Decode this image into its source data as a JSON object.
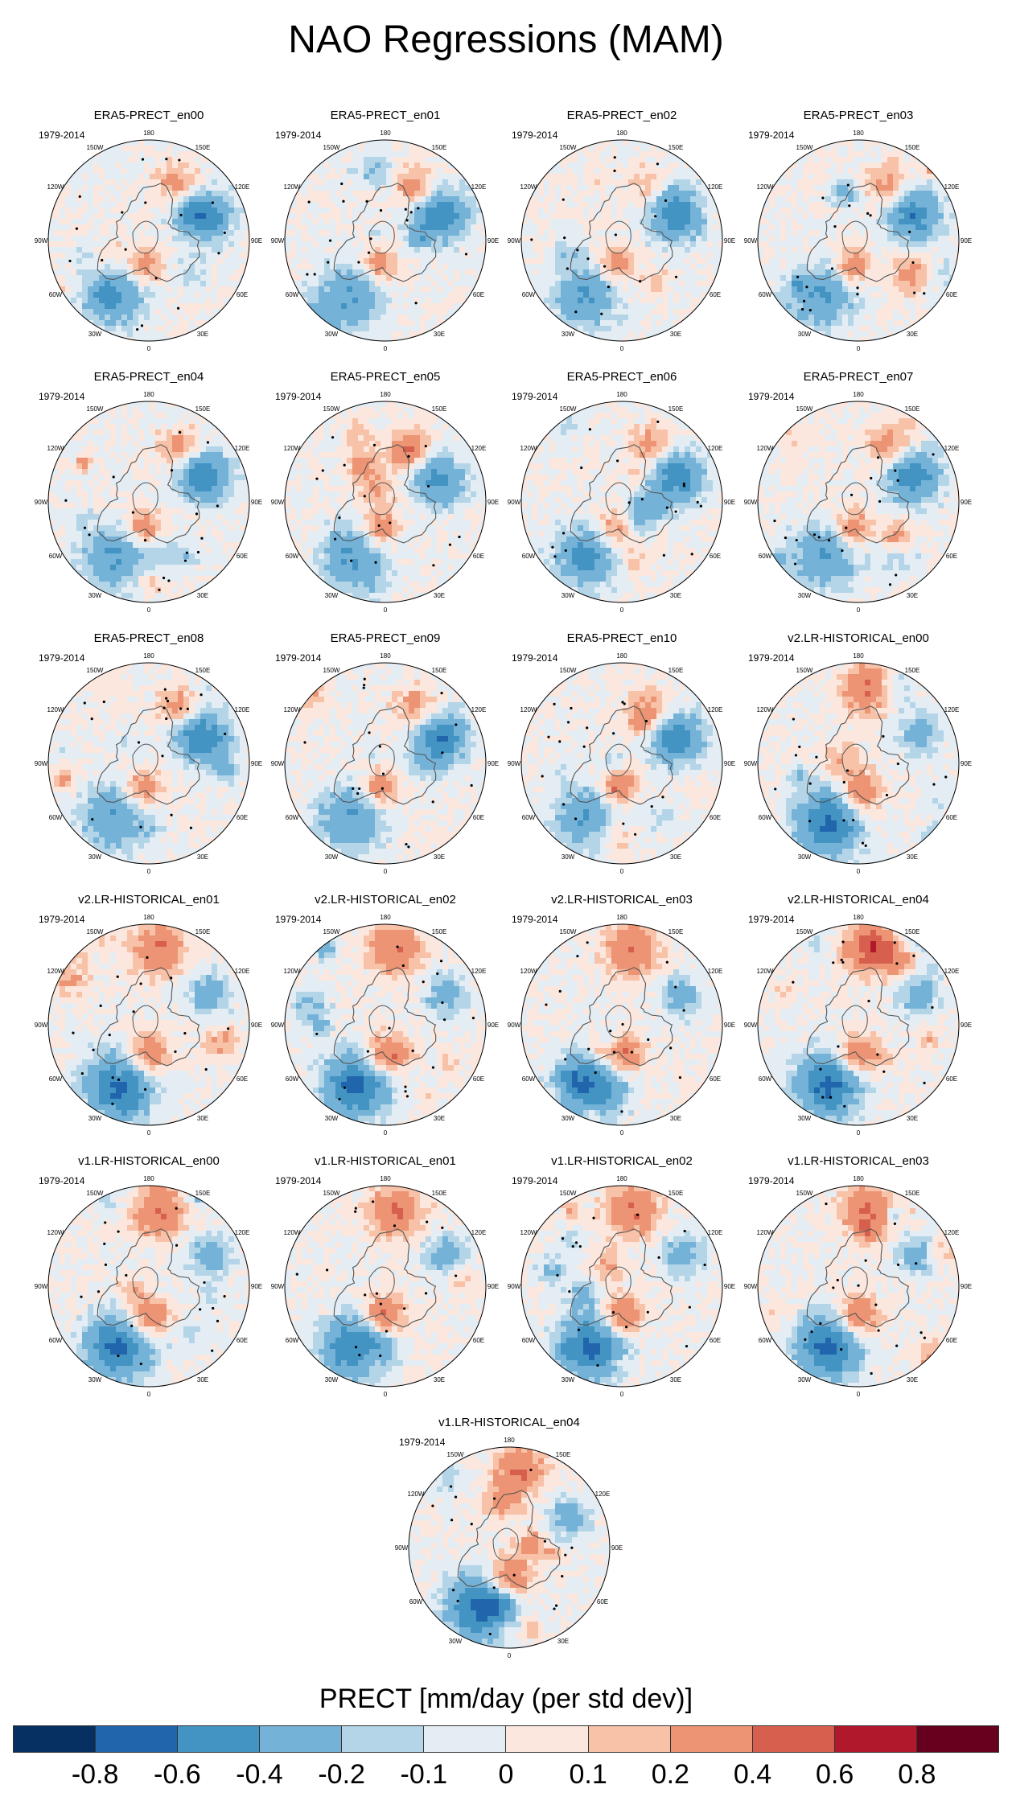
{
  "title": "NAO Regressions (MAM)",
  "icons": [
    "polar-map-icon"
  ],
  "chart_data": {
    "type": "heatmap",
    "title": "NAO Regressions (MAM)",
    "projection": "north polar stereographic",
    "period": "1979-2014",
    "longitude_labels": [
      "180",
      "150E",
      "120E",
      "90E",
      "60E",
      "30E",
      "0",
      "30W",
      "60W",
      "90W",
      "120W",
      "150W"
    ],
    "panels": [
      {
        "title": "ERA5-PRECT_en00",
        "period": "1979-2014",
        "pattern": "era5"
      },
      {
        "title": "ERA5-PRECT_en01",
        "period": "1979-2014",
        "pattern": "era5"
      },
      {
        "title": "ERA5-PRECT_en02",
        "period": "1979-2014",
        "pattern": "era5"
      },
      {
        "title": "ERA5-PRECT_en03",
        "period": "1979-2014",
        "pattern": "era5"
      },
      {
        "title": "ERA5-PRECT_en04",
        "period": "1979-2014",
        "pattern": "era5"
      },
      {
        "title": "ERA5-PRECT_en05",
        "period": "1979-2014",
        "pattern": "era5"
      },
      {
        "title": "ERA5-PRECT_en06",
        "period": "1979-2014",
        "pattern": "era5"
      },
      {
        "title": "ERA5-PRECT_en07",
        "period": "1979-2014",
        "pattern": "era5"
      },
      {
        "title": "ERA5-PRECT_en08",
        "period": "1979-2014",
        "pattern": "era5"
      },
      {
        "title": "ERA5-PRECT_en09",
        "period": "1979-2014",
        "pattern": "era5"
      },
      {
        "title": "ERA5-PRECT_en10",
        "period": "1979-2014",
        "pattern": "era5"
      },
      {
        "title": "v2.LR-HISTORICAL_en00",
        "period": "1979-2014",
        "pattern": "model"
      },
      {
        "title": "v2.LR-HISTORICAL_en01",
        "period": "1979-2014",
        "pattern": "model"
      },
      {
        "title": "v2.LR-HISTORICAL_en02",
        "period": "1979-2014",
        "pattern": "model"
      },
      {
        "title": "v2.LR-HISTORICAL_en03",
        "period": "1979-2014",
        "pattern": "model"
      },
      {
        "title": "v2.LR-HISTORICAL_en04",
        "period": "1979-2014",
        "pattern": "model"
      },
      {
        "title": "v1.LR-HISTORICAL_en00",
        "period": "1979-2014",
        "pattern": "model"
      },
      {
        "title": "v1.LR-HISTORICAL_en01",
        "period": "1979-2014",
        "pattern": "model"
      },
      {
        "title": "v1.LR-HISTORICAL_en02",
        "period": "1979-2014",
        "pattern": "model"
      },
      {
        "title": "v1.LR-HISTORICAL_en03",
        "period": "1979-2014",
        "pattern": "model"
      },
      {
        "title": "v1.LR-HISTORICAL_en04",
        "period": "1979-2014",
        "pattern": "model"
      }
    ],
    "colorbar": {
      "title": "PRECT [mm/day (per std dev)]",
      "levels": [
        -0.8,
        -0.6,
        -0.4,
        -0.2,
        -0.1,
        0,
        0.1,
        0.2,
        0.4,
        0.6,
        0.8
      ],
      "labels": [
        "-0.8",
        "-0.6",
        "-0.4",
        "-0.2",
        "-0.1",
        "0",
        "0.1",
        "0.2",
        "0.4",
        "0.6",
        "0.8"
      ],
      "colors": [
        "#053061",
        "#2166ac",
        "#4393c3",
        "#74b2d8",
        "#b4d5e8",
        "#e3edf3",
        "#fbe7de",
        "#f7c2a8",
        "#ec9473",
        "#d6604d",
        "#b2182b",
        "#67001f"
      ]
    }
  }
}
